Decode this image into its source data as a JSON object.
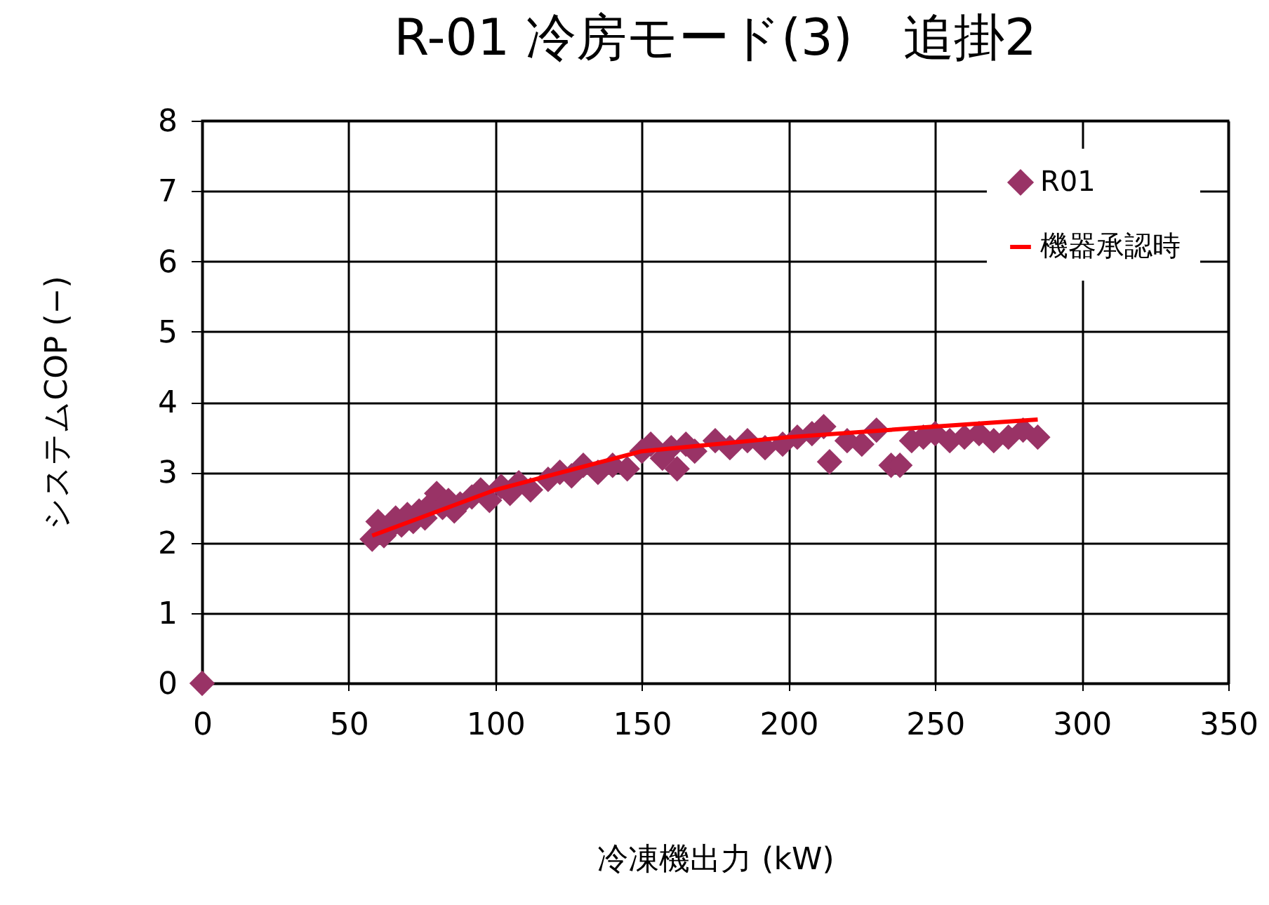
{
  "chart_data": {
    "type": "scatter",
    "title": "R-01 冷房モード(3)　追掛2",
    "xlabel": "冷凍機出力 (kW)",
    "ylabel": "システムCOP (−)",
    "xlim": [
      0,
      350
    ],
    "xticks": [
      0,
      50,
      100,
      150,
      200,
      250,
      300,
      350
    ],
    "ylim": [
      0,
      8
    ],
    "yticks": [
      0,
      1,
      2,
      3,
      4,
      5,
      6,
      7,
      8
    ],
    "grid": true,
    "legend": "top right",
    "series": [
      {
        "name": "R01",
        "color": "#993366",
        "marker": "diamond",
        "x": [
          0,
          58,
          60,
          62,
          64,
          66,
          68,
          70,
          72,
          74,
          76,
          78,
          80,
          82,
          84,
          86,
          88,
          92,
          95,
          98,
          102,
          105,
          108,
          112,
          118,
          122,
          126,
          130,
          135,
          140,
          145,
          150,
          153,
          157,
          160,
          162,
          165,
          168,
          175,
          180,
          186,
          192,
          198,
          203,
          208,
          212,
          214,
          220,
          225,
          230,
          235,
          238,
          242,
          246,
          250,
          255,
          260,
          265,
          270,
          275,
          280,
          285
        ],
        "values": [
          0,
          2.05,
          2.3,
          2.1,
          2.2,
          2.35,
          2.25,
          2.4,
          2.3,
          2.45,
          2.35,
          2.55,
          2.7,
          2.5,
          2.6,
          2.45,
          2.55,
          2.65,
          2.75,
          2.6,
          2.8,
          2.7,
          2.85,
          2.75,
          2.9,
          3.0,
          2.95,
          3.1,
          3.0,
          3.1,
          3.05,
          3.3,
          3.4,
          3.2,
          3.35,
          3.05,
          3.4,
          3.3,
          3.45,
          3.35,
          3.45,
          3.35,
          3.4,
          3.5,
          3.55,
          3.65,
          3.15,
          3.45,
          3.4,
          3.6,
          3.1,
          3.1,
          3.45,
          3.5,
          3.55,
          3.45,
          3.5,
          3.55,
          3.45,
          3.5,
          3.6,
          3.5
        ]
      },
      {
        "name": "機器承認時",
        "type": "line",
        "marker": "none",
        "color": "#ff0000",
        "x": [
          58,
          100,
          150,
          200,
          250,
          285
        ],
        "values": [
          2.1,
          2.75,
          3.3,
          3.5,
          3.65,
          3.75
        ]
      }
    ]
  }
}
